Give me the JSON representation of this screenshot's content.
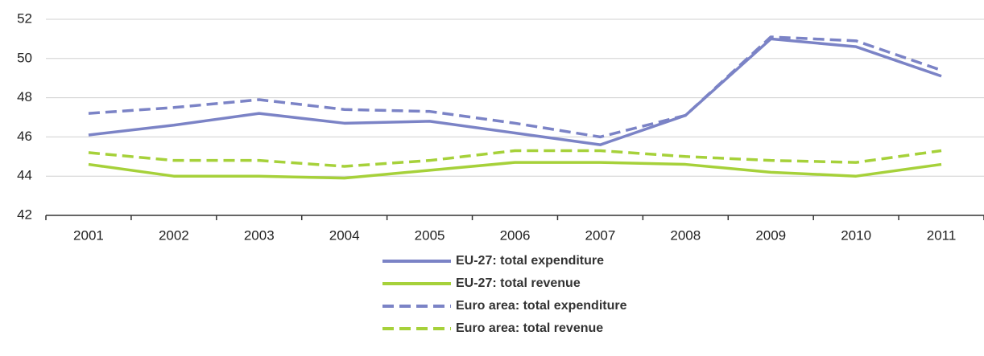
{
  "chart_data": {
    "type": "line",
    "categories": [
      "2001",
      "2002",
      "2003",
      "2004",
      "2005",
      "2006",
      "2007",
      "2008",
      "2009",
      "2010",
      "2011"
    ],
    "series": [
      {
        "name": "EU-27: total expenditure",
        "color": "#7b83c6",
        "dashed": false,
        "values": [
          46.1,
          46.6,
          47.2,
          46.7,
          46.8,
          46.2,
          45.6,
          47.1,
          51.0,
          50.6,
          49.1
        ]
      },
      {
        "name": "EU-27: total revenue",
        "color": "#a6d13a",
        "dashed": false,
        "values": [
          44.6,
          44.0,
          44.0,
          43.9,
          44.3,
          44.7,
          44.7,
          44.6,
          44.2,
          44.0,
          44.6
        ]
      },
      {
        "name": "Euro area: total expenditure",
        "color": "#7b83c6",
        "dashed": true,
        "values": [
          47.2,
          47.5,
          47.9,
          47.4,
          47.3,
          46.7,
          46.0,
          47.1,
          51.1,
          50.9,
          49.4
        ]
      },
      {
        "name": "Euro area: total revenue",
        "color": "#a6d13a",
        "dashed": true,
        "values": [
          45.2,
          44.8,
          44.8,
          44.5,
          44.8,
          45.3,
          45.3,
          45.0,
          44.8,
          44.7,
          45.3
        ]
      }
    ],
    "ylim": [
      42,
      52
    ],
    "yticks": [
      42,
      44,
      46,
      48,
      50,
      52
    ],
    "grid": true,
    "legend": "bottom"
  }
}
